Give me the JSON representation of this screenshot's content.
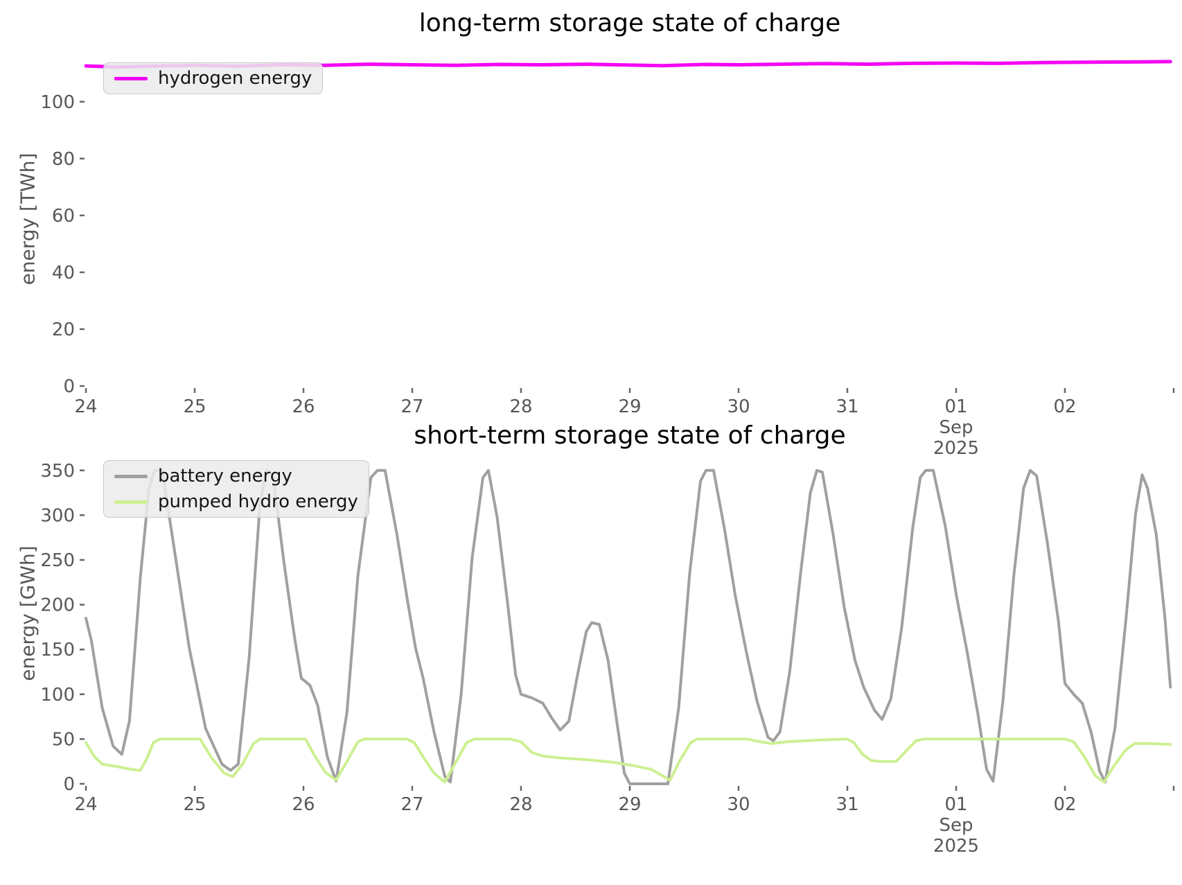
{
  "colors": {
    "background": "#ffffff",
    "hydrogen": "#f400f4",
    "battery": "#a0a0a0",
    "pumped_hydro": "#cdef92",
    "tick_label": "#575757",
    "axis_label": "#565656",
    "tick_mark": "#666666",
    "title": "#000000"
  },
  "chart_data": [
    {
      "type": "line",
      "title": "long-term storage state of charge",
      "ylabel": "energy [TWh]",
      "xlabel": "",
      "grid": false,
      "legend_position": "upper left",
      "xlim": [
        24,
        34
      ],
      "ylim": [
        0,
        117.5
      ],
      "x_note": "x encoded as day number: 24..31 = Aug 24-31 2025, 32 = Sep 01, 33 = Sep 02",
      "x_ticks": [
        {
          "pos": 24,
          "label": "24"
        },
        {
          "pos": 25,
          "label": "25"
        },
        {
          "pos": 26,
          "label": "26"
        },
        {
          "pos": 27,
          "label": "27"
        },
        {
          "pos": 28,
          "label": "28"
        },
        {
          "pos": 29,
          "label": "29"
        },
        {
          "pos": 30,
          "label": "30"
        },
        {
          "pos": 31,
          "label": "31"
        },
        {
          "pos": 32,
          "label": "01",
          "sublabels": [
            "Sep",
            "2025"
          ]
        },
        {
          "pos": 33,
          "label": "02"
        },
        {
          "pos": 34,
          "label": ""
        }
      ],
      "y_ticks": [
        0,
        20,
        40,
        60,
        80,
        100
      ],
      "series": [
        {
          "name": "hydrogen energy",
          "color": "#f400f4",
          "linewidth": 5,
          "points": [
            [
              24.0,
              112.6
            ],
            [
              24.3,
              112.2
            ],
            [
              24.6,
              112.5
            ],
            [
              25.0,
              112.8
            ],
            [
              25.4,
              112.5
            ],
            [
              25.8,
              113.0
            ],
            [
              26.2,
              112.8
            ],
            [
              26.6,
              113.2
            ],
            [
              27.0,
              113.0
            ],
            [
              27.4,
              112.8
            ],
            [
              27.8,
              113.1
            ],
            [
              28.2,
              113.0
            ],
            [
              28.6,
              113.2
            ],
            [
              29.0,
              112.9
            ],
            [
              29.3,
              112.7
            ],
            [
              29.7,
              113.1
            ],
            [
              30.0,
              113.0
            ],
            [
              30.4,
              113.2
            ],
            [
              30.8,
              113.4
            ],
            [
              31.2,
              113.2
            ],
            [
              31.6,
              113.5
            ],
            [
              32.0,
              113.6
            ],
            [
              32.4,
              113.5
            ],
            [
              32.8,
              113.8
            ],
            [
              33.2,
              113.9
            ],
            [
              33.6,
              114.0
            ],
            [
              33.97,
              114.1
            ]
          ]
        }
      ]
    },
    {
      "type": "line",
      "title": "short-term storage state of charge",
      "ylabel": "energy [GWh]",
      "xlabel": "",
      "grid": false,
      "legend_position": "upper left",
      "xlim": [
        24,
        34
      ],
      "ylim": [
        0,
        380
      ],
      "x_note": "x encoded as day number: 24..31 = Aug 24-31 2025, 32 = Sep 01, 33 = Sep 02",
      "x_ticks": [
        {
          "pos": 24,
          "label": "24"
        },
        {
          "pos": 25,
          "label": "25"
        },
        {
          "pos": 26,
          "label": "26"
        },
        {
          "pos": 27,
          "label": "27"
        },
        {
          "pos": 28,
          "label": "28"
        },
        {
          "pos": 29,
          "label": "29"
        },
        {
          "pos": 30,
          "label": "30"
        },
        {
          "pos": 31,
          "label": "31"
        },
        {
          "pos": 32,
          "label": "01",
          "sublabels": [
            "Sep",
            "2025"
          ]
        },
        {
          "pos": 33,
          "label": "02"
        },
        {
          "pos": 34,
          "label": ""
        }
      ],
      "y_ticks": [
        0,
        50,
        100,
        150,
        200,
        250,
        300,
        350
      ],
      "series": [
        {
          "name": "battery energy",
          "color": "#a0a0a0",
          "linewidth": 4,
          "points": [
            [
              24.0,
              185
            ],
            [
              24.05,
              160
            ],
            [
              24.15,
              85
            ],
            [
              24.25,
              42
            ],
            [
              24.33,
              33
            ],
            [
              24.4,
              70
            ],
            [
              24.5,
              230
            ],
            [
              24.58,
              330
            ],
            [
              24.63,
              350
            ],
            [
              24.7,
              350
            ],
            [
              24.8,
              272
            ],
            [
              24.95,
              152
            ],
            [
              25.1,
              62
            ],
            [
              25.25,
              22
            ],
            [
              25.33,
              15
            ],
            [
              25.4,
              22
            ],
            [
              25.5,
              140
            ],
            [
              25.6,
              312
            ],
            [
              25.66,
              350
            ],
            [
              25.72,
              345
            ],
            [
              25.82,
              248
            ],
            [
              25.92,
              162
            ],
            [
              25.98,
              118
            ],
            [
              26.06,
              110
            ],
            [
              26.13,
              88
            ],
            [
              26.22,
              30
            ],
            [
              26.3,
              3
            ],
            [
              26.4,
              80
            ],
            [
              26.5,
              232
            ],
            [
              26.62,
              342
            ],
            [
              26.68,
              350
            ],
            [
              26.75,
              350
            ],
            [
              26.86,
              278
            ],
            [
              26.96,
              202
            ],
            [
              27.03,
              152
            ],
            [
              27.1,
              118
            ],
            [
              27.2,
              58
            ],
            [
              27.3,
              8
            ],
            [
              27.35,
              2
            ],
            [
              27.45,
              100
            ],
            [
              27.55,
              252
            ],
            [
              27.65,
              342
            ],
            [
              27.7,
              350
            ],
            [
              27.78,
              298
            ],
            [
              27.88,
              198
            ],
            [
              27.95,
              122
            ],
            [
              28.0,
              100
            ],
            [
              28.1,
              96
            ],
            [
              28.2,
              90
            ],
            [
              28.28,
              74
            ],
            [
              28.36,
              60
            ],
            [
              28.44,
              70
            ],
            [
              28.52,
              122
            ],
            [
              28.6,
              170
            ],
            [
              28.65,
              180
            ],
            [
              28.72,
              178
            ],
            [
              28.8,
              138
            ],
            [
              28.88,
              70
            ],
            [
              28.95,
              12
            ],
            [
              29.0,
              0
            ],
            [
              29.35,
              0
            ],
            [
              29.45,
              85
            ],
            [
              29.55,
              235
            ],
            [
              29.65,
              338
            ],
            [
              29.7,
              350
            ],
            [
              29.77,
              350
            ],
            [
              29.87,
              285
            ],
            [
              29.97,
              210
            ],
            [
              30.07,
              148
            ],
            [
              30.17,
              92
            ],
            [
              30.27,
              52
            ],
            [
              30.32,
              48
            ],
            [
              30.38,
              58
            ],
            [
              30.47,
              125
            ],
            [
              30.57,
              235
            ],
            [
              30.66,
              325
            ],
            [
              30.72,
              350
            ],
            [
              30.77,
              348
            ],
            [
              30.87,
              278
            ],
            [
              30.97,
              198
            ],
            [
              31.07,
              138
            ],
            [
              31.15,
              108
            ],
            [
              31.25,
              82
            ],
            [
              31.32,
              72
            ],
            [
              31.4,
              95
            ],
            [
              31.5,
              175
            ],
            [
              31.6,
              285
            ],
            [
              31.67,
              342
            ],
            [
              31.72,
              350
            ],
            [
              31.79,
              350
            ],
            [
              31.9,
              288
            ],
            [
              32.0,
              212
            ],
            [
              32.1,
              148
            ],
            [
              32.2,
              78
            ],
            [
              32.28,
              16
            ],
            [
              32.34,
              3
            ],
            [
              32.43,
              92
            ],
            [
              32.53,
              232
            ],
            [
              32.62,
              330
            ],
            [
              32.68,
              350
            ],
            [
              32.74,
              344
            ],
            [
              32.84,
              268
            ],
            [
              32.94,
              182
            ],
            [
              33.0,
              112
            ],
            [
              33.08,
              100
            ],
            [
              33.16,
              90
            ],
            [
              33.24,
              58
            ],
            [
              33.32,
              14
            ],
            [
              33.37,
              2
            ],
            [
              33.46,
              62
            ],
            [
              33.56,
              182
            ],
            [
              33.65,
              302
            ],
            [
              33.71,
              345
            ],
            [
              33.76,
              330
            ],
            [
              33.84,
              278
            ],
            [
              33.92,
              185
            ],
            [
              33.97,
              108
            ]
          ]
        },
        {
          "name": "pumped hydro energy",
          "color": "#cdef92",
          "linewidth": 4,
          "points": [
            [
              24.0,
              46
            ],
            [
              24.08,
              30
            ],
            [
              24.15,
              22
            ],
            [
              24.3,
              19
            ],
            [
              24.42,
              16
            ],
            [
              24.5,
              15
            ],
            [
              24.56,
              28
            ],
            [
              24.62,
              46
            ],
            [
              24.68,
              50
            ],
            [
              25.05,
              50
            ],
            [
              25.15,
              30
            ],
            [
              25.27,
              12
            ],
            [
              25.35,
              8
            ],
            [
              25.44,
              22
            ],
            [
              25.54,
              45
            ],
            [
              25.6,
              50
            ],
            [
              26.02,
              50
            ],
            [
              26.1,
              32
            ],
            [
              26.2,
              13
            ],
            [
              26.3,
              4
            ],
            [
              26.4,
              25
            ],
            [
              26.5,
              47
            ],
            [
              26.56,
              50
            ],
            [
              26.95,
              50
            ],
            [
              27.02,
              46
            ],
            [
              27.1,
              30
            ],
            [
              27.2,
              12
            ],
            [
              27.3,
              2
            ],
            [
              27.4,
              24
            ],
            [
              27.5,
              46
            ],
            [
              27.57,
              50
            ],
            [
              27.9,
              50
            ],
            [
              28.0,
              47
            ],
            [
              28.1,
              35
            ],
            [
              28.2,
              31
            ],
            [
              28.35,
              29
            ],
            [
              28.6,
              27
            ],
            [
              28.85,
              24
            ],
            [
              29.05,
              20
            ],
            [
              29.2,
              16
            ],
            [
              29.3,
              9
            ],
            [
              29.37,
              4
            ],
            [
              29.46,
              26
            ],
            [
              29.56,
              46
            ],
            [
              29.62,
              50
            ],
            [
              30.08,
              50
            ],
            [
              30.2,
              47
            ],
            [
              30.3,
              45
            ],
            [
              30.45,
              47
            ],
            [
              30.6,
              48
            ],
            [
              30.75,
              49
            ],
            [
              31.0,
              50
            ],
            [
              31.06,
              46
            ],
            [
              31.14,
              33
            ],
            [
              31.22,
              26
            ],
            [
              31.3,
              25
            ],
            [
              31.45,
              25
            ],
            [
              31.55,
              38
            ],
            [
              31.63,
              48
            ],
            [
              31.7,
              50
            ],
            [
              32.3,
              50
            ],
            [
              33.0,
              50
            ],
            [
              33.08,
              47
            ],
            [
              33.18,
              30
            ],
            [
              33.28,
              9
            ],
            [
              33.36,
              2
            ],
            [
              33.45,
              20
            ],
            [
              33.56,
              38
            ],
            [
              33.64,
              45
            ],
            [
              33.8,
              45
            ],
            [
              33.97,
              44
            ]
          ]
        }
      ]
    }
  ]
}
